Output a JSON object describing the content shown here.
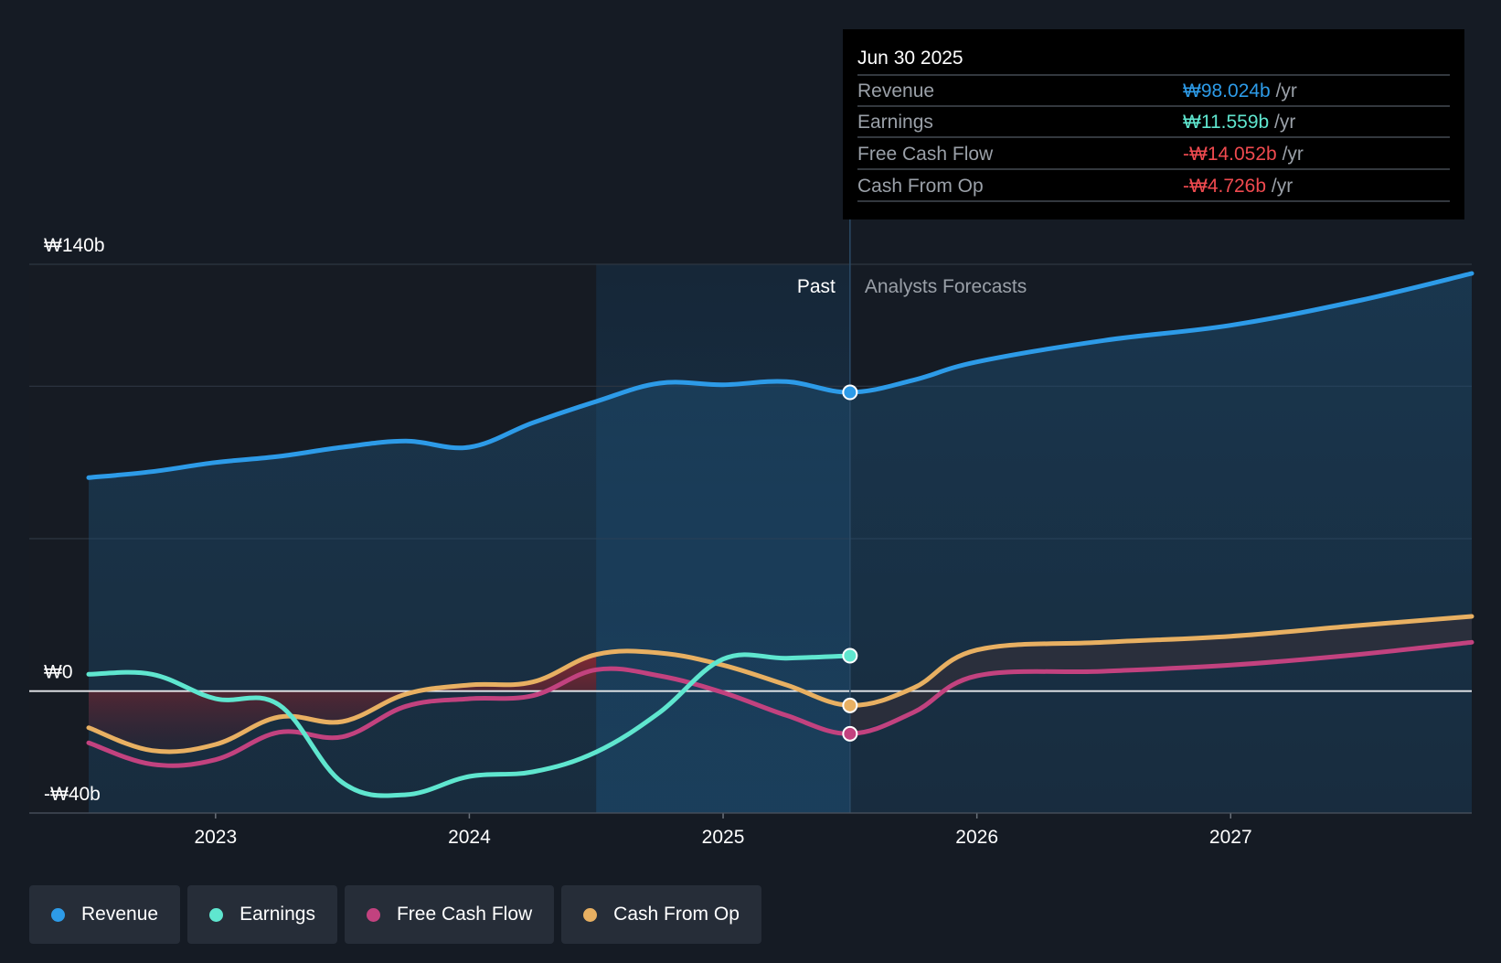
{
  "chart_data": {
    "type": "line",
    "currency_symbol": "₩",
    "y_axis": {
      "min": -40,
      "max": 140,
      "unit": "b",
      "tick_labels": [
        {
          "value": 140,
          "label": "₩140b"
        },
        {
          "value": 0,
          "label": "₩0"
        },
        {
          "value": -40,
          "label": "-₩40b"
        }
      ],
      "gridlines": [
        140,
        100,
        50,
        0,
        -40
      ]
    },
    "x_axis": {
      "min": 2022.5,
      "max": 2027.95,
      "ticks": [
        {
          "value": 2023,
          "label": "2023"
        },
        {
          "value": 2024,
          "label": "2024"
        },
        {
          "value": 2025,
          "label": "2025"
        },
        {
          "value": 2026,
          "label": "2026"
        },
        {
          "value": 2027,
          "label": "2027"
        }
      ]
    },
    "past_label": "Past",
    "forecast_label": "Analysts Forecasts",
    "divider_x": 2025.5,
    "highlight_start_x": 2024.5,
    "tooltip": {
      "date": "Jun 30 2025",
      "rows": [
        {
          "label": "Revenue",
          "value": "₩98.024b",
          "unit": "/yr",
          "color": "#2d9be8"
        },
        {
          "label": "Earnings",
          "value": "₩11.559b",
          "unit": "/yr",
          "color": "#5fe6cf"
        },
        {
          "label": "Free Cash Flow",
          "value": "-₩14.052b",
          "unit": "/yr",
          "color": "#ef4a4f"
        },
        {
          "label": "Cash From Op",
          "value": "-₩4.726b",
          "unit": "/yr",
          "color": "#ef4a4f"
        }
      ]
    },
    "series": [
      {
        "name": "Revenue",
        "color": "#2d9be8",
        "points": [
          [
            2022.5,
            70
          ],
          [
            2022.75,
            72
          ],
          [
            2023,
            75
          ],
          [
            2023.25,
            77
          ],
          [
            2023.5,
            80
          ],
          [
            2023.75,
            82
          ],
          [
            2024,
            80
          ],
          [
            2024.25,
            88
          ],
          [
            2024.5,
            95
          ],
          [
            2024.75,
            101
          ],
          [
            2025,
            100.5
          ],
          [
            2025.25,
            101.5
          ],
          [
            2025.5,
            98
          ],
          [
            2025.75,
            102
          ],
          [
            2026,
            108
          ],
          [
            2026.5,
            115
          ],
          [
            2027,
            120
          ],
          [
            2027.5,
            128
          ],
          [
            2027.95,
            137
          ]
        ]
      },
      {
        "name": "Earnings",
        "color": "#5fe6cf",
        "points": [
          [
            2022.5,
            5.5
          ],
          [
            2022.75,
            5.5
          ],
          [
            2023,
            -2.5
          ],
          [
            2023.25,
            -4.5
          ],
          [
            2023.5,
            -30
          ],
          [
            2023.75,
            -34
          ],
          [
            2024,
            -28
          ],
          [
            2024.25,
            -26.5
          ],
          [
            2024.5,
            -20
          ],
          [
            2024.75,
            -7
          ],
          [
            2025,
            10.5
          ],
          [
            2025.25,
            10.8
          ],
          [
            2025.5,
            11.6
          ]
        ]
      },
      {
        "name": "Free Cash Flow",
        "color": "#c2427f",
        "points": [
          [
            2022.5,
            -17
          ],
          [
            2022.75,
            -24
          ],
          [
            2023,
            -22.5
          ],
          [
            2023.25,
            -13.5
          ],
          [
            2023.5,
            -15
          ],
          [
            2023.75,
            -5
          ],
          [
            2024,
            -2.5
          ],
          [
            2024.25,
            -1.5
          ],
          [
            2024.5,
            7
          ],
          [
            2024.75,
            5
          ],
          [
            2025,
            -0.5
          ],
          [
            2025.25,
            -8
          ],
          [
            2025.5,
            -14
          ],
          [
            2025.75,
            -7
          ],
          [
            2026,
            5
          ],
          [
            2026.5,
            6.5
          ],
          [
            2027,
            8.5
          ],
          [
            2027.5,
            12
          ],
          [
            2027.95,
            16
          ]
        ]
      },
      {
        "name": "Cash From Op",
        "color": "#e8b062",
        "points": [
          [
            2022.5,
            -12
          ],
          [
            2022.75,
            -19.5
          ],
          [
            2023,
            -17.5
          ],
          [
            2023.25,
            -8.5
          ],
          [
            2023.5,
            -10
          ],
          [
            2023.75,
            -1
          ],
          [
            2024,
            2
          ],
          [
            2024.25,
            3
          ],
          [
            2024.5,
            12
          ],
          [
            2024.75,
            12.5
          ],
          [
            2025,
            8.5
          ],
          [
            2025.25,
            2
          ],
          [
            2025.5,
            -4.7
          ],
          [
            2025.75,
            1
          ],
          [
            2026,
            13.5
          ],
          [
            2026.5,
            16
          ],
          [
            2027,
            18
          ],
          [
            2027.5,
            21.5
          ],
          [
            2027.95,
            24.5
          ]
        ]
      }
    ]
  }
}
